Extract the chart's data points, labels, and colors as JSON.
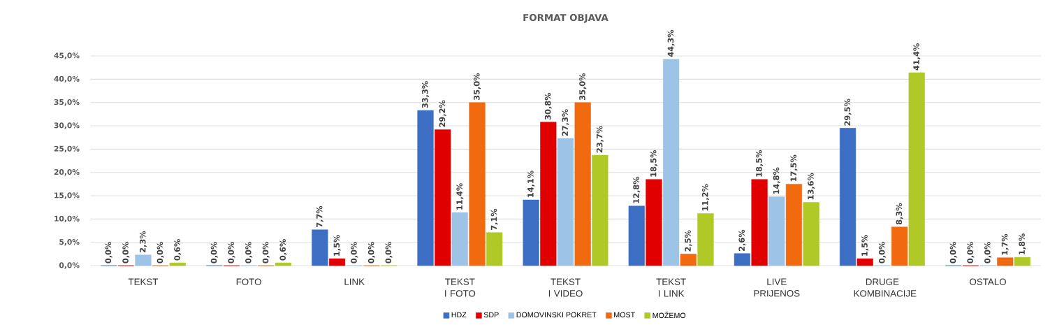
{
  "chart_data": {
    "type": "bar",
    "title": "FORMAT OBJAVA",
    "categories": [
      "TEKST",
      "FOTO",
      "LINK",
      "TEKST I FOTO",
      "TEKST I VIDEO",
      "TEKST I LINK",
      "LIVE PRIJENOS",
      "DRUGE KOMBINACIJE",
      "OSTALO"
    ],
    "series": [
      {
        "name": "HDZ",
        "color": "#3c6fc4",
        "values": [
          0.0,
          0.0,
          7.7,
          33.3,
          14.1,
          12.8,
          2.6,
          29.5,
          0.0
        ],
        "value_labels": [
          "0,0%",
          "0,0%",
          "7,7%",
          "33,3%",
          "14,1%",
          "12,8%",
          "2,6%",
          "29,5%",
          "0,0%"
        ]
      },
      {
        "name": "SDP",
        "color": "#e00000",
        "values": [
          0.0,
          0.0,
          1.5,
          29.2,
          30.8,
          18.5,
          18.5,
          1.5,
          0.0
        ],
        "value_labels": [
          "0,0%",
          "0,0%",
          "1,5%",
          "29,2%",
          "30,8%",
          "18,5%",
          "18,5%",
          "1,5%",
          "0,0%"
        ]
      },
      {
        "name": "DOMOVINSKI POKRET",
        "color": "#9dc3e6",
        "values": [
          2.3,
          0.0,
          0.0,
          11.4,
          27.3,
          44.3,
          14.8,
          0.0,
          0.0
        ],
        "value_labels": [
          "2,3%",
          "0,0%",
          "0,0%",
          "11,4%",
          "27,3%",
          "44,3%",
          "14,8%",
          "0,0%",
          "0,0%"
        ]
      },
      {
        "name": "MOST",
        "color": "#f26a10",
        "values": [
          0.0,
          0.0,
          0.0,
          35.0,
          35.0,
          2.5,
          17.5,
          8.3,
          1.7
        ],
        "value_labels": [
          "0,0%",
          "0,0%",
          "0,0%",
          "35,0%",
          "35,0%",
          "2,5%",
          "17,5%",
          "8,3%",
          "1,7%"
        ]
      },
      {
        "name": "MOŽEMO",
        "color": "#b0c926",
        "values": [
          0.6,
          0.6,
          0.0,
          7.1,
          23.7,
          11.2,
          13.6,
          41.4,
          1.8
        ],
        "value_labels": [
          "0,6%",
          "0,6%",
          "0,0%",
          "7,1%",
          "23,7%",
          "11,2%",
          "13,6%",
          "41,4%",
          "1,8%"
        ]
      }
    ],
    "ylim": [
      0,
      45
    ],
    "yticks": [
      {
        "value": 0,
        "label": "0,0%"
      },
      {
        "value": 5,
        "label": "5,0%"
      },
      {
        "value": 10,
        "label": "10,0%"
      },
      {
        "value": 15,
        "label": "15,0%"
      },
      {
        "value": 20,
        "label": "20,0%"
      },
      {
        "value": 25,
        "label": "25,0%"
      },
      {
        "value": 30,
        "label": "30,0%"
      },
      {
        "value": 35,
        "label": "35,0%"
      },
      {
        "value": 40,
        "label": "40,0%"
      },
      {
        "value": 45,
        "label": "45,0%"
      }
    ],
    "grid": "y",
    "legend": "bottom"
  }
}
